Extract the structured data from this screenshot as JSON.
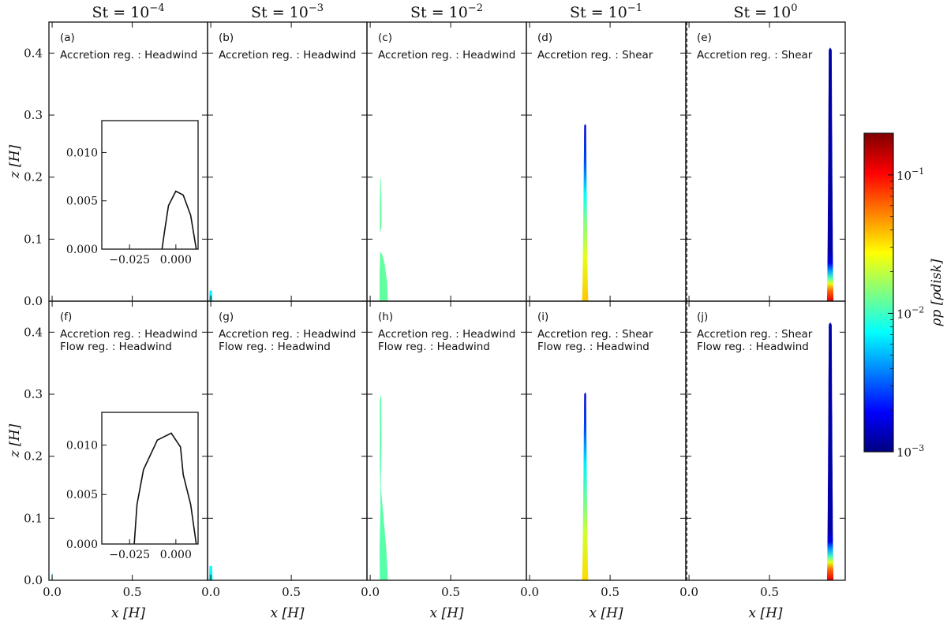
{
  "chart_data": {
    "type": "area",
    "x_axis": {
      "label": "x [H]",
      "range": [
        -0.02,
        0.97
      ],
      "ticks": [
        "0.0",
        "0.5"
      ]
    },
    "z_axis": {
      "label": "z [H]",
      "range": [
        0.0,
        0.45
      ],
      "ticks": [
        "0.0",
        "0.1",
        "0.2",
        "0.3",
        "0.4"
      ]
    },
    "columns": [
      {
        "title": "St = 10^-4",
        "base": "St = 10",
        "exp": "−4"
      },
      {
        "title": "St = 10^-3",
        "base": "St = 10",
        "exp": "−3"
      },
      {
        "title": "St = 10^-2",
        "base": "St = 10",
        "exp": "−2"
      },
      {
        "title": "St = 10^-1",
        "base": "St = 10",
        "exp": "−1"
      },
      {
        "title": "St = 10^0",
        "base": "St = 10",
        "exp": "0"
      }
    ],
    "panels": [
      {
        "id": "(a)",
        "lines": [
          "Accretion reg. : Headwind"
        ]
      },
      {
        "id": "(b)",
        "lines": [
          "Accretion reg. : Headwind"
        ]
      },
      {
        "id": "(c)",
        "lines": [
          "Accretion reg. : Headwind"
        ]
      },
      {
        "id": "(d)",
        "lines": [
          "Accretion reg. : Shear"
        ]
      },
      {
        "id": "(e)",
        "lines": [
          "Accretion reg. : Shear"
        ]
      },
      {
        "id": "(f)",
        "lines": [
          "Accretion reg. : Headwind",
          "Flow reg.        : Headwind"
        ]
      },
      {
        "id": "(g)",
        "lines": [
          "Accretion reg. : Headwind",
          "Flow reg.        : Headwind"
        ]
      },
      {
        "id": "(h)",
        "lines": [
          "Accretion reg. : Headwind",
          "Flow reg.        : Headwind"
        ]
      },
      {
        "id": "(i)",
        "lines": [
          "Accretion reg. : Shear",
          "Flow reg.        : Headwind"
        ]
      },
      {
        "id": "(j)",
        "lines": [
          "Accretion reg. : Shear",
          "Flow reg.        : Headwind"
        ]
      }
    ],
    "insets": [
      {
        "panel": "(a)",
        "x_ticks": [
          "−0.025",
          "0.000"
        ],
        "y_ticks": [
          "0.000",
          "0.005",
          "0.010"
        ],
        "x_range": [
          -0.04,
          0.012
        ],
        "y_range": [
          0,
          0.0133
        ]
      },
      {
        "panel": "(f)",
        "x_ticks": [
          "−0.025",
          "0.000"
        ],
        "y_ticks": [
          "0.000",
          "0.005",
          "0.010"
        ],
        "x_range": [
          -0.04,
          0.012
        ],
        "y_range": [
          0,
          0.0133
        ]
      }
    ],
    "colorbar": {
      "label": "ρp [ρdisk]",
      "scale": "log",
      "range": [
        0.001,
        0.2
      ],
      "ticks": [
        {
          "value": 0.1,
          "label": "10^-1"
        },
        {
          "value": 0.01,
          "label": "10^-2"
        },
        {
          "value": 0.001,
          "label": "10^-3"
        }
      ],
      "colormap": "jet"
    }
  }
}
